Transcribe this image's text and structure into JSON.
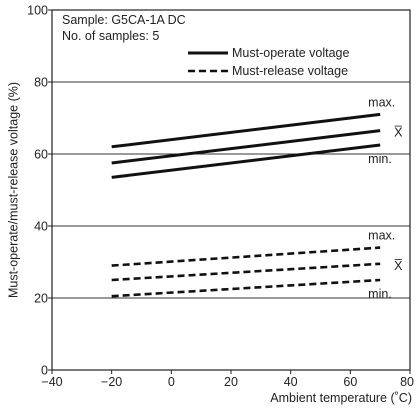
{
  "chart_data": {
    "type": "line",
    "xlabel": "Ambient temperature (˚C)",
    "ylabel": "Must-operate/must-release voltage (%)",
    "xlim": [
      -40,
      80
    ],
    "ylim": [
      0,
      100
    ],
    "xticks": [
      -40,
      -20,
      0,
      20,
      40,
      60,
      80
    ],
    "yticks": [
      0,
      20,
      40,
      60,
      80,
      100
    ],
    "grid": true,
    "annotations": [
      "Sample: G5CA-1A DC",
      "No. of samples: 5"
    ],
    "legend": {
      "placement": "top-right",
      "entries": [
        {
          "label": "Must-operate voltage",
          "style": "solid"
        },
        {
          "label": "Must-release voltage",
          "style": "dashed"
        }
      ]
    },
    "series": [
      {
        "group": "Must-operate voltage",
        "label": "max.",
        "style": "solid",
        "x": [
          -20,
          70
        ],
        "y": [
          62,
          71
        ]
      },
      {
        "group": "Must-operate voltage",
        "label": "X̅",
        "style": "solid",
        "x": [
          -20,
          70
        ],
        "y": [
          57.5,
          66.5
        ]
      },
      {
        "group": "Must-operate voltage",
        "label": "min.",
        "style": "solid",
        "x": [
          -20,
          70
        ],
        "y": [
          53.5,
          62.5
        ]
      },
      {
        "group": "Must-release voltage",
        "label": "max.",
        "style": "dashed",
        "x": [
          -20,
          70
        ],
        "y": [
          29,
          34
        ]
      },
      {
        "group": "Must-release voltage",
        "label": "X̅",
        "style": "dashed",
        "x": [
          -20,
          70
        ],
        "y": [
          25,
          29.5
        ]
      },
      {
        "group": "Must-release voltage",
        "label": "min.",
        "style": "dashed",
        "x": [
          -20,
          70
        ],
        "y": [
          20.5,
          25
        ]
      }
    ]
  }
}
